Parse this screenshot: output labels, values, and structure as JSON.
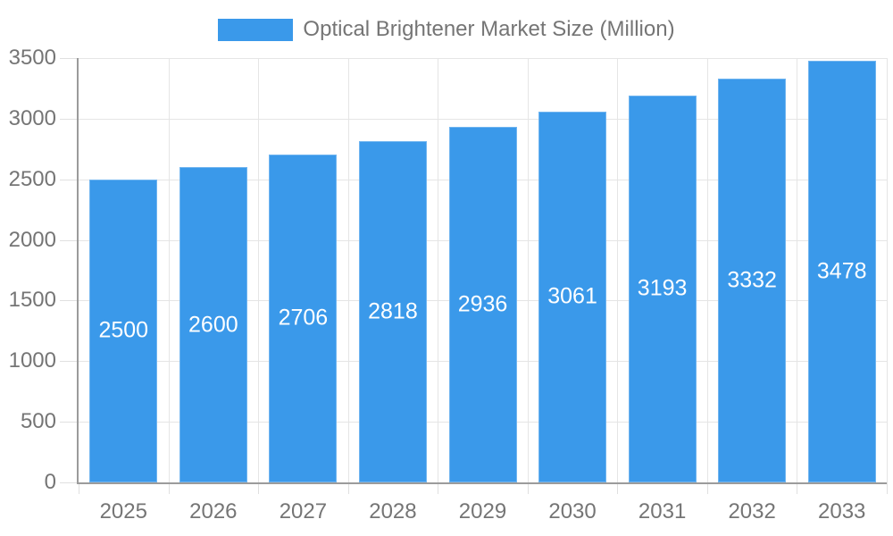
{
  "legend": {
    "label": "Optical Brightener Market Size (Million)"
  },
  "chart_data": {
    "type": "bar",
    "title": "Optical Brightener Market Size (Million)",
    "categories": [
      "2025",
      "2026",
      "2027",
      "2028",
      "2029",
      "2030",
      "2031",
      "2032",
      "2033"
    ],
    "values": [
      2500,
      2600,
      2706,
      2818,
      2936,
      3061,
      3193,
      3332,
      3478
    ],
    "xlabel": "",
    "ylabel": "",
    "ylim": [
      0,
      3500
    ],
    "ytick_step": 500,
    "ytick_labels": [
      "0",
      "500",
      "1000",
      "1500",
      "2000",
      "2500",
      "3000",
      "3500"
    ],
    "grid": true,
    "legend_position": "top",
    "bar_color": "#3a99ea",
    "value_label_color": "#ffffff",
    "axis_text_color": "#757575",
    "gridline_color": "#e5e5e5",
    "axis_line_color": "#9b9b9b"
  }
}
